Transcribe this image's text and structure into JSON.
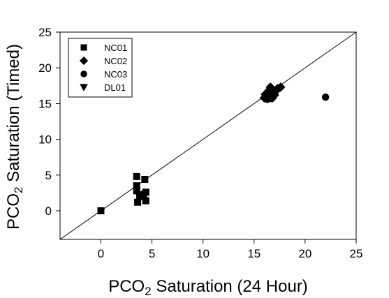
{
  "chart_data": {
    "type": "scatter",
    "xlabel": {
      "pre": "PCO",
      "sub": "2",
      "post": " Saturation (24 Hour)"
    },
    "ylabel": {
      "pre": "PCO",
      "sub": "2",
      "post": " Saturation (Timed)"
    },
    "xlim": [
      -4,
      25
    ],
    "ylim": [
      -4,
      25
    ],
    "xticks": [
      0,
      5,
      10,
      15,
      20,
      25
    ],
    "yticks": [
      0,
      5,
      10,
      15,
      20,
      25
    ],
    "grid": false,
    "legend_position": "top-left",
    "reference_line": "y = x",
    "series": [
      {
        "name": "NC01",
        "marker": "square",
        "points": [
          [
            0,
            0
          ],
          [
            3.5,
            4.8
          ],
          [
            3.5,
            3.5
          ],
          [
            3.5,
            2.8
          ],
          [
            3.6,
            1.2
          ],
          [
            3.8,
            2.0
          ],
          [
            4.2,
            2.3
          ],
          [
            4.3,
            4.4
          ],
          [
            4.4,
            2.6
          ],
          [
            4.4,
            1.4
          ]
        ]
      },
      {
        "name": "NC02",
        "marker": "diamond",
        "points": [
          [
            16.0,
            15.8
          ],
          [
            16.1,
            16.3
          ],
          [
            16.3,
            16.5
          ],
          [
            16.5,
            16.9
          ],
          [
            16.6,
            17.3
          ],
          [
            16.8,
            15.8
          ],
          [
            17.0,
            16.2
          ],
          [
            17.1,
            16.7
          ],
          [
            17.3,
            17.1
          ],
          [
            17.6,
            17.3
          ],
          [
            16.4,
            16.0
          ]
        ]
      },
      {
        "name": "NC03",
        "marker": "circle",
        "points": [
          [
            16.1,
            16.0
          ],
          [
            16.3,
            15.6
          ],
          [
            16.5,
            16.2
          ],
          [
            16.7,
            15.7
          ],
          [
            22.0,
            15.9
          ]
        ]
      },
      {
        "name": "DL01",
        "marker": "triangle-down",
        "points": []
      }
    ]
  }
}
